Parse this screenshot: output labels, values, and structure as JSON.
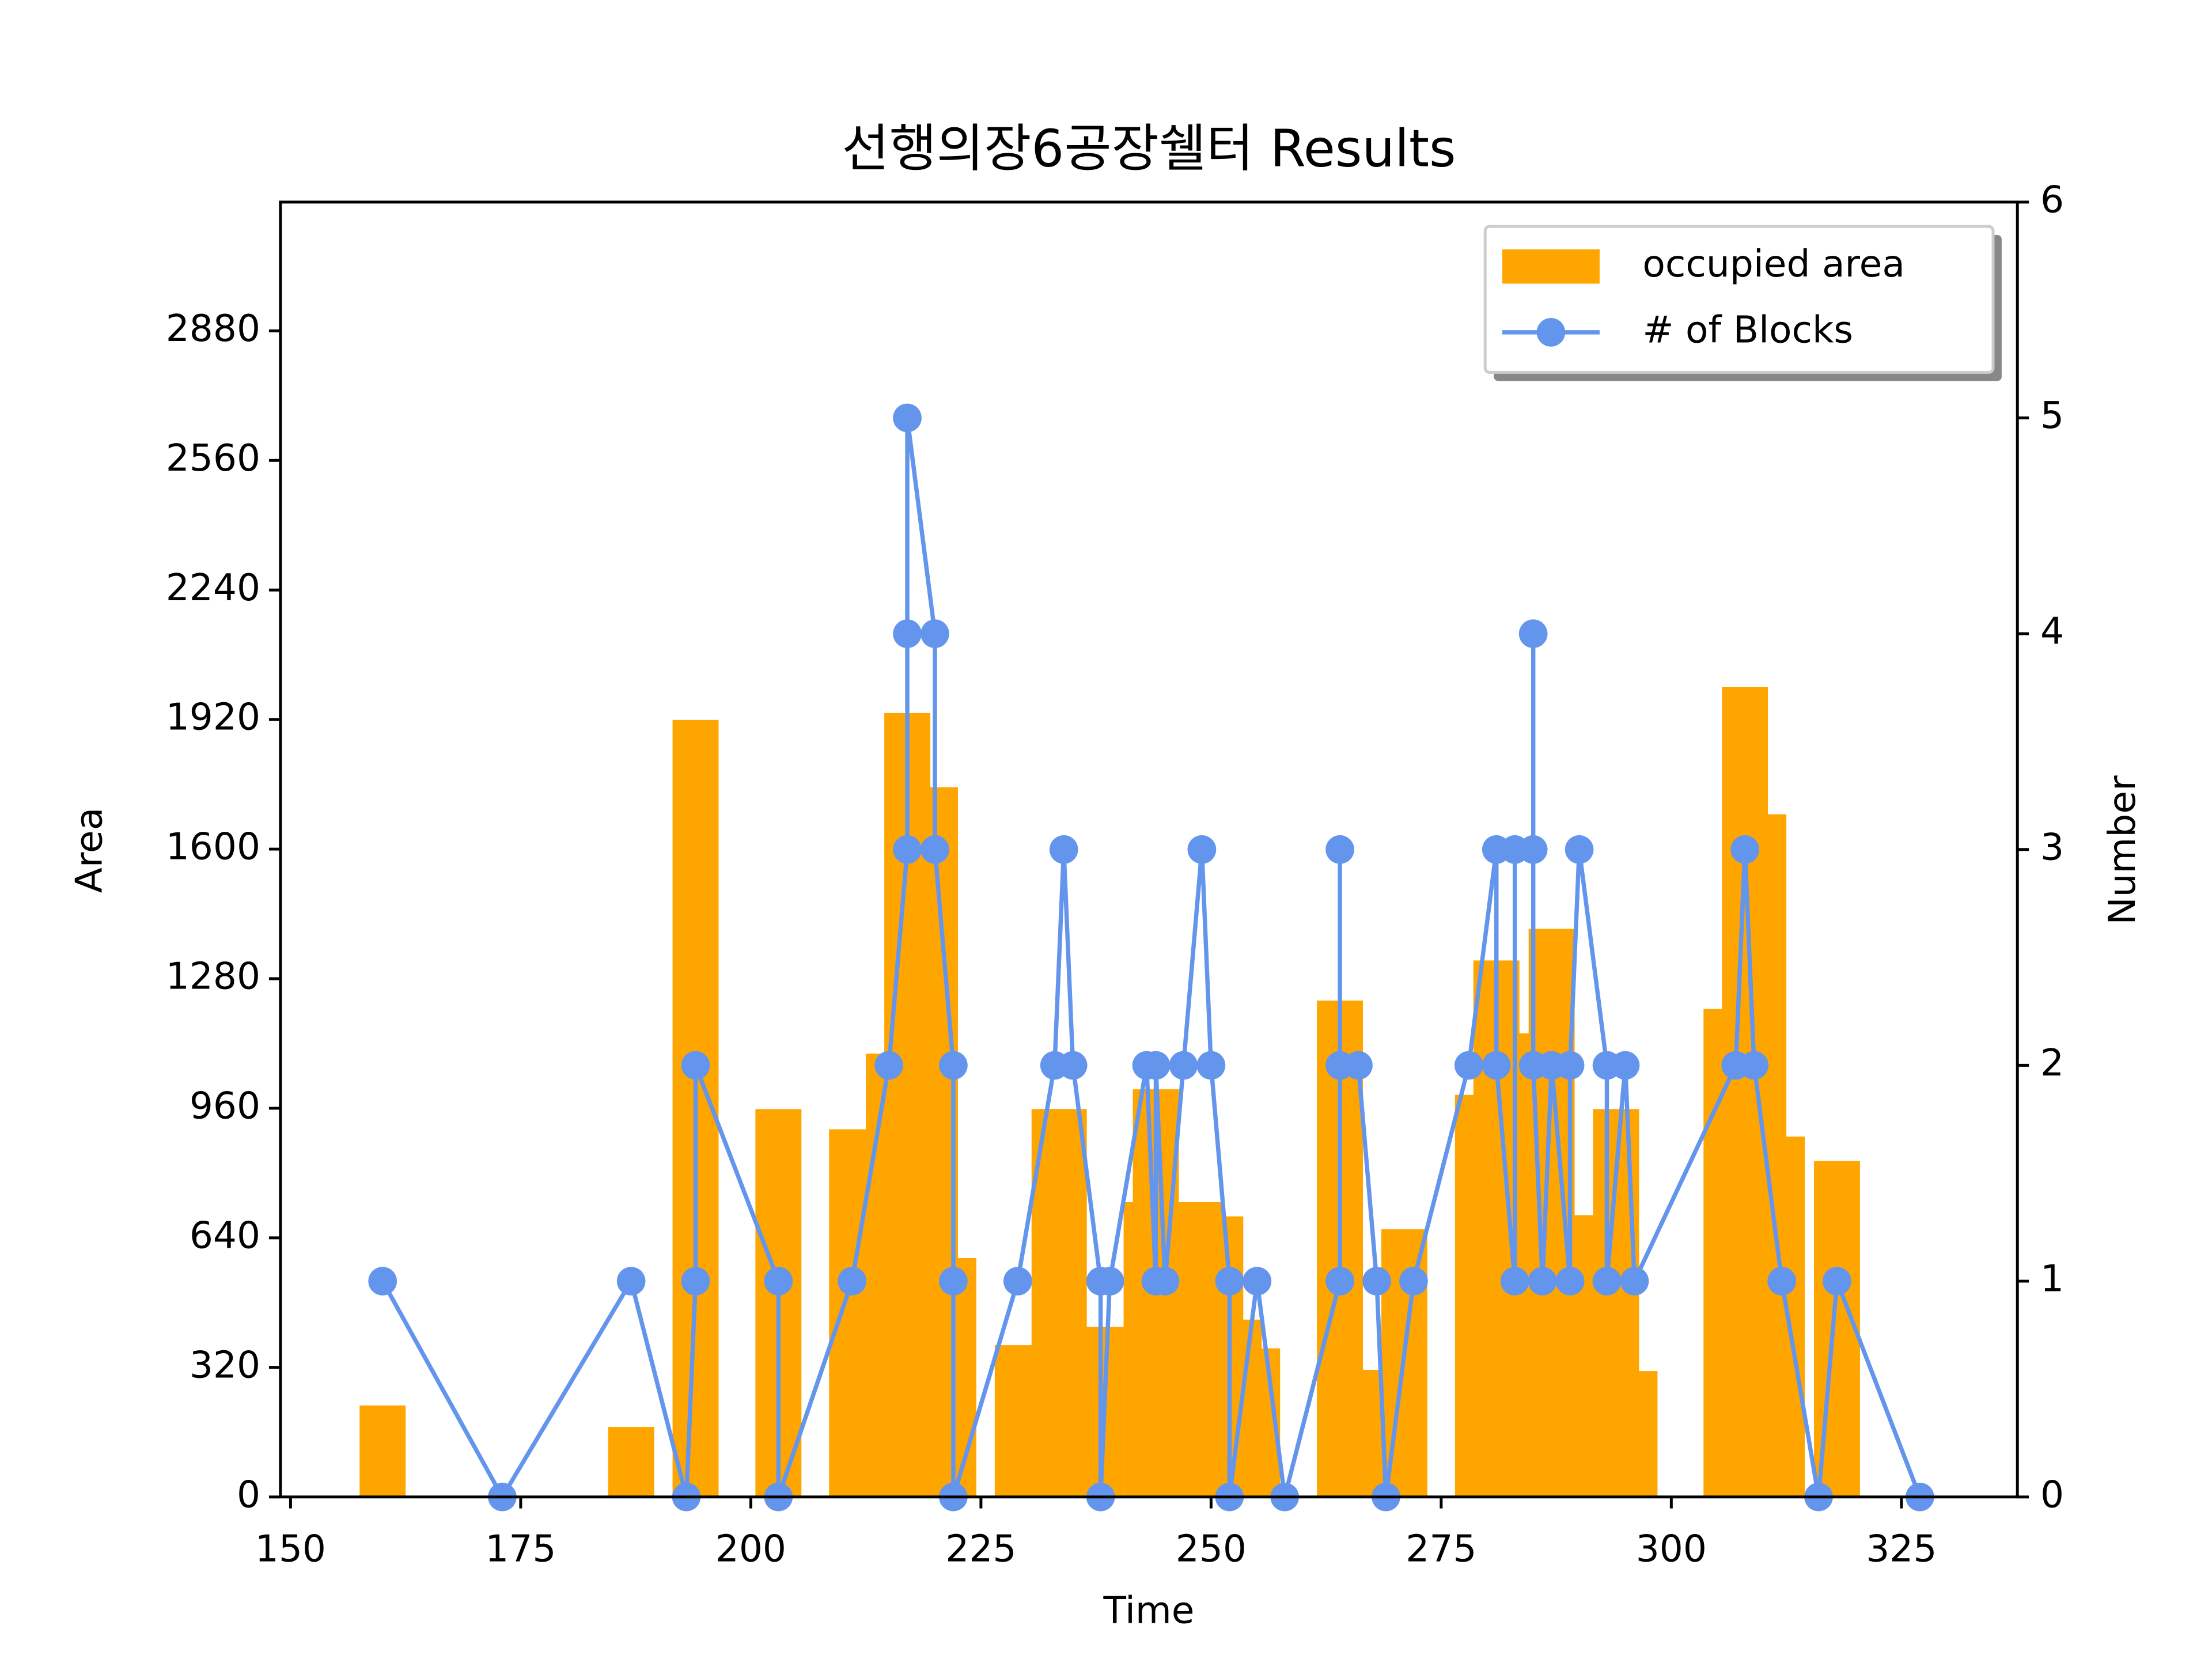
{
  "chart_data": {
    "type": "bar-line",
    "title": "선행의장6공장쉘터 Results",
    "x_label": "Time",
    "y_label": "Area",
    "y2_label": "Number",
    "xlim": [
      148.9,
      337.6
    ],
    "xticks": [
      150,
      175,
      200,
      225,
      250,
      275,
      300,
      325
    ],
    "ylim": [
      0,
      3198
    ],
    "yticks": [
      0,
      320,
      640,
      960,
      1280,
      1600,
      1920,
      2240,
      2560,
      2880
    ],
    "y2lim": [
      0,
      6
    ],
    "y2ticks": [
      0,
      1,
      2,
      3,
      4,
      5,
      6
    ],
    "legend": "upper right",
    "series": [
      {
        "name": "occupied area",
        "type": "bar",
        "color": "#ffa500",
        "x": [
          160,
          187,
          194,
          203,
          211,
          215,
          217,
          220,
          222,
          229,
          233,
          234,
          238,
          243,
          244,
          247,
          249,
          251,
          253,
          255,
          264,
          266,
          271,
          279,
          281,
          284,
          287,
          290,
          294,
          296,
          306,
          308,
          310,
          312,
          318
        ],
        "values": [
          226,
          173,
          1919,
          958,
          908,
          1095,
          1936,
          1753,
          590,
          375,
          958,
          958,
          420,
          728,
          1007,
          728,
          728,
          693,
          438,
          367,
          1226,
          314,
          661,
          993,
          1325,
          1145,
          1403,
          696,
          958,
          311,
          1205,
          2000,
          1686,
          890,
          830
        ]
      },
      {
        "name": "# of Blocks",
        "type": "line",
        "axis": "y2",
        "color": "#6495ed",
        "x": [
          160,
          173,
          187,
          193,
          194,
          194,
          203,
          203,
          211,
          215,
          217,
          217,
          217,
          220,
          220,
          222,
          222,
          222,
          229,
          233,
          234,
          235,
          238,
          238,
          239,
          243,
          244,
          244,
          245,
          247,
          249,
          250,
          252,
          252,
          255,
          258,
          264,
          264,
          264,
          266,
          268,
          269,
          272,
          278,
          281,
          281,
          283,
          283,
          285,
          285,
          285,
          286,
          287,
          289,
          289,
          290,
          293,
          293,
          295,
          296,
          307,
          308,
          309,
          312,
          316,
          318,
          327
        ],
        "values": [
          1,
          0,
          1,
          0,
          1,
          2,
          1,
          0,
          1,
          2,
          3,
          4,
          5,
          4,
          3,
          2,
          1,
          0,
          1,
          2,
          3,
          2,
          1,
          0,
          1,
          2,
          1,
          2,
          1,
          2,
          3,
          2,
          1,
          0,
          1,
          0,
          1,
          3,
          2,
          2,
          1,
          0,
          1,
          2,
          3,
          2,
          1,
          3,
          3,
          4,
          2,
          1,
          2,
          1,
          2,
          3,
          2,
          1,
          2,
          1,
          2,
          3,
          2,
          1,
          0,
          1,
          0
        ]
      }
    ]
  }
}
